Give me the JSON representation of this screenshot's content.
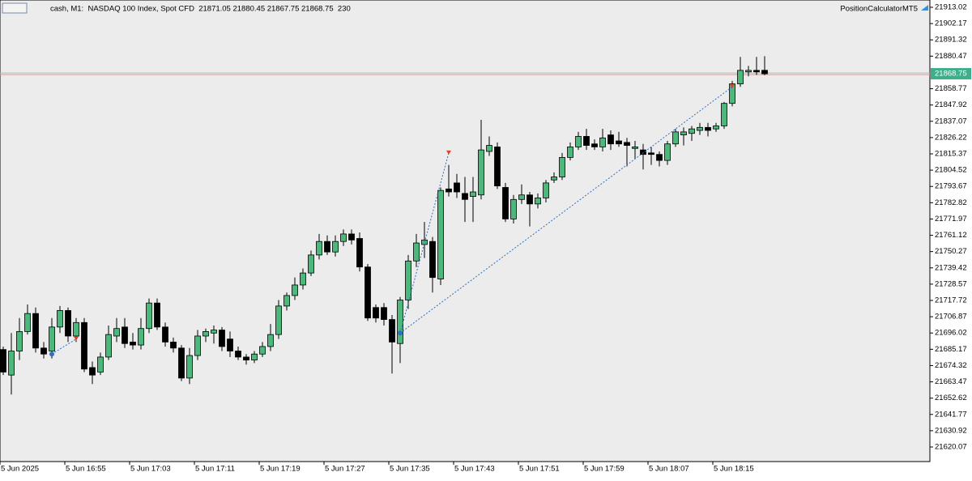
{
  "header": "cash, M1:  NASDAQ 100 Index, Spot CFD  21871.05 21880.45 21867.75 21868.75  230",
  "indicator": "PositionCalculatorMT5",
  "chart_data": {
    "type": "candlestick",
    "categories": [
      "5 Jun 2025",
      null,
      null,
      null,
      null,
      null,
      null,
      null,
      "5 Jun 16:55",
      null,
      null,
      null,
      null,
      null,
      null,
      null,
      "5 Jun 17:03",
      null,
      null,
      null,
      null,
      null,
      null,
      null,
      "5 Jun 17:11",
      null,
      null,
      null,
      null,
      null,
      null,
      null,
      "5 Jun 17:19",
      null,
      null,
      null,
      null,
      null,
      null,
      null,
      "5 Jun 17:27",
      null,
      null,
      null,
      null,
      null,
      null,
      null,
      "5 Jun 17:35",
      null,
      null,
      null,
      null,
      null,
      null,
      null,
      "5 Jun 17:43",
      null,
      null,
      null,
      null,
      null,
      null,
      null,
      "5 Jun 17:51",
      null,
      null,
      null,
      null,
      null,
      null,
      null,
      "5 Jun 17:59",
      null,
      null,
      null,
      null,
      null,
      null,
      null,
      "5 Jun 18:07",
      null,
      null,
      null,
      null,
      null,
      null,
      null,
      "5 Jun 18:15",
      null,
      null,
      null,
      null,
      null,
      null
    ],
    "open": [
      21685,
      21668,
      21684,
      21697,
      21709,
      21686,
      21684,
      21700,
      21711,
      21694,
      21703,
      21673,
      21670,
      21680,
      21694,
      21700,
      21690,
      21688,
      21699,
      21716,
      21700,
      21690,
      21686,
      21666,
      21681,
      21694,
      21696,
      21698,
      21692,
      21684,
      21680,
      21678,
      21682,
      21687,
      21695,
      21714,
      21721,
      21728,
      21736,
      21748,
      21757,
      21750,
      21757,
      21762,
      21759,
      21740,
      21713,
      21713,
      21705,
      21689,
      21718,
      21744,
      21755,
      21757,
      21732,
      21792,
      21796,
      21789,
      21787,
      21788,
      21817,
      21820,
      21793,
      21772,
      21785,
      21788,
      21782,
      21786,
      21798,
      21800,
      21813,
      21820,
      21827,
      21822,
      21820,
      21828,
      21824,
      21823,
      21819,
      21818,
      21816,
      21815,
      21811,
      21822,
      21828,
      21829,
      21831,
      21833,
      21832,
      21834,
      21849,
      21862,
      21870,
      21871,
      21871.05
    ],
    "high": [
      21687,
      21696,
      21706,
      21715,
      21713,
      21690,
      21706,
      21714,
      21713,
      21706,
      21706,
      21677,
      21683,
      21701,
      21706,
      21706,
      21696,
      21706,
      21719,
      21719,
      21703,
      21693,
      21688,
      21686,
      21698,
      21699,
      21701,
      21700,
      21697,
      21687,
      21682,
      21684,
      21690,
      21702,
      21718,
      21723,
      21733,
      21739,
      21751,
      21762,
      21761,
      21761,
      21765,
      21765,
      21763,
      21742,
      21715,
      21716,
      21708,
      21720,
      21748,
      21762,
      21770,
      21760,
      21793,
      21808,
      21802,
      21800,
      21800,
      21838,
      21827,
      21823,
      21796,
      21788,
      21795,
      21790,
      21789,
      21798,
      21803,
      21816,
      21823,
      21830,
      21832,
      21825,
      21832,
      21831,
      21830,
      21826,
      21824,
      21822,
      21820,
      21817,
      21824,
      21832,
      21833,
      21834,
      21836,
      21836,
      21836,
      21850,
      21864,
      21880,
      21874,
      21880,
      21880.45
    ],
    "low": [
      21668,
      21655,
      21678,
      21695,
      21683,
      21679,
      21679,
      21696,
      21690,
      21690,
      21670,
      21662,
      21668,
      21678,
      21690,
      21686,
      21685,
      21685,
      21696,
      21698,
      21687,
      21683,
      21664,
      21662,
      21678,
      21690,
      21689,
      21684,
      21680,
      21678,
      21675,
      21676,
      21680,
      21684,
      21692,
      21711,
      21718,
      21725,
      21734,
      21745,
      21748,
      21747,
      21754,
      21755,
      21737,
      21704,
      21703,
      21701,
      21669,
      21676,
      21712,
      21740,
      21746,
      21723,
      21728,
      21787,
      21786,
      21770,
      21770,
      21785,
      21814,
      21792,
      21770,
      21769,
      21782,
      21767,
      21779,
      21783,
      21796,
      21798,
      21811,
      21818,
      21818,
      21818,
      21817,
      21818,
      21820,
      21807,
      21812,
      21805,
      21808,
      21807,
      21808,
      21820,
      21821,
      21824,
      21828,
      21827,
      21830,
      21832,
      21847,
      21860,
      21867,
      21868,
      21867.75
    ],
    "close": [
      21670,
      21684,
      21697,
      21709,
      21686,
      21682,
      21700,
      21711,
      21694,
      21703,
      21672,
      21668,
      21680,
      21695,
      21699,
      21689,
      21688,
      21699,
      21716,
      21700,
      21690,
      21686,
      21666,
      21681,
      21694,
      21697,
      21698,
      21687,
      21684,
      21680,
      21678,
      21682,
      21687,
      21695,
      21714,
      21721,
      21728,
      21736,
      21748,
      21757,
      21750,
      21757,
      21762,
      21758,
      21740,
      21706,
      21706,
      21705,
      21690,
      21718,
      21744,
      21756,
      21758,
      21733,
      21791,
      21790,
      21790,
      21785,
      21790,
      21818,
      21821,
      21794,
      21772,
      21785,
      21788,
      21782,
      21786,
      21796,
      21800,
      21813,
      21820,
      21827,
      21821,
      21820,
      21826,
      21822,
      21822,
      21821,
      21820,
      21815,
      21815,
      21811,
      21822,
      21830,
      21830,
      21832,
      21833,
      21831,
      21834,
      21849,
      21862,
      21871,
      21871,
      21870,
      21868.75
    ],
    "up_color": "#4cb87c",
    "down_color": "#000000",
    "ylim": [
      21611.44,
      21917.88
    ],
    "yticks": [
      21913.02,
      21902.17,
      21891.32,
      21880.47,
      21858.77,
      21847.92,
      21837.07,
      21826.22,
      21815.37,
      21804.52,
      21793.67,
      21782.82,
      21771.97,
      21761.12,
      21750.27,
      21739.42,
      21728.57,
      21717.72,
      21706.87,
      21696.02,
      21685.17,
      21674.32,
      21663.47,
      21652.62,
      21641.77,
      21630.92,
      21620.07
    ],
    "current_price": 21868.75,
    "trades": [
      {
        "entry_index": 6,
        "entry_price": 21682,
        "exit_index": 9,
        "exit_price": 21692
      },
      {
        "entry_index": 49,
        "entry_price": 21696,
        "exit_index": 55,
        "exit_price": 21816
      },
      {
        "entry_index": 49,
        "entry_price": 21696,
        "exit_index": 90,
        "exit_price": 21860
      }
    ],
    "grid": false
  }
}
